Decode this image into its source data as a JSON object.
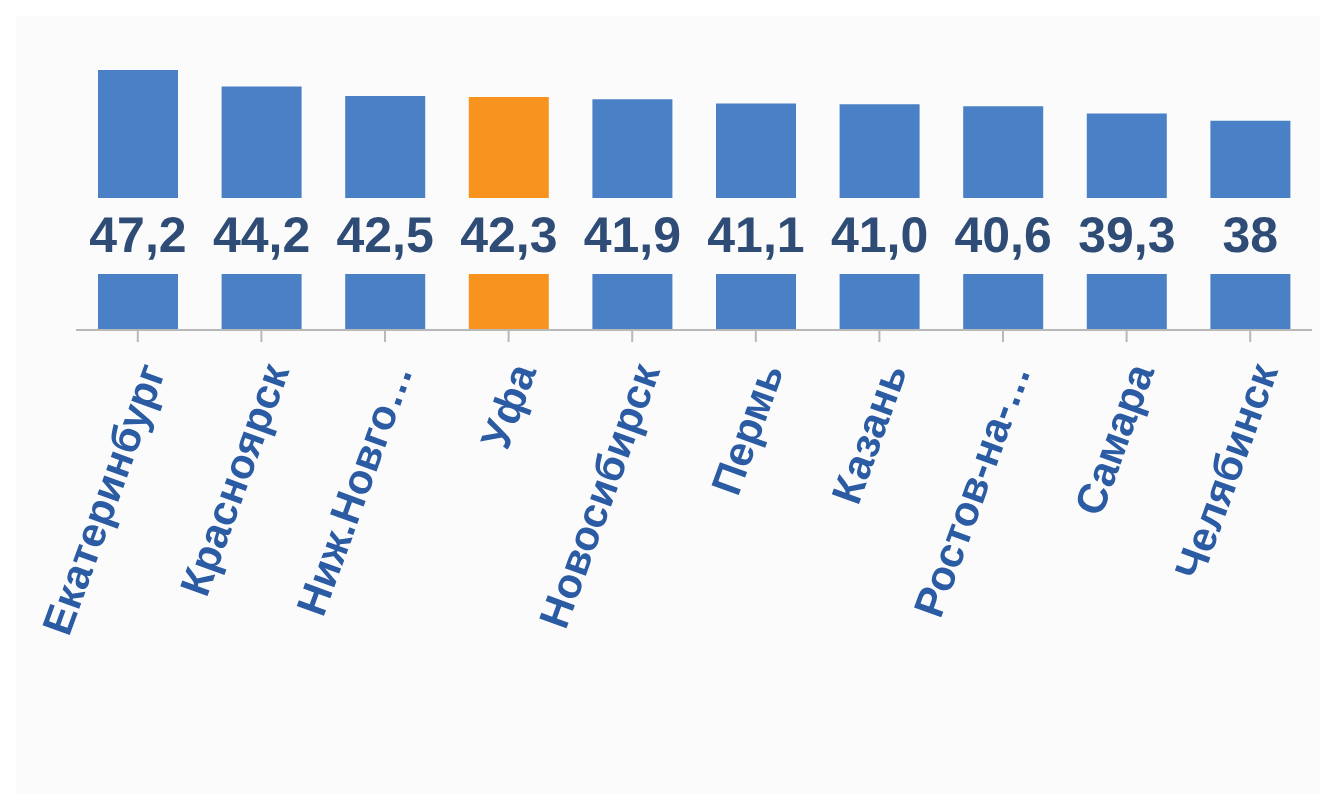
{
  "chart_data": {
    "type": "bar",
    "categories": [
      "Екатеринбург",
      "Красноярск",
      "Ниж.Новго…",
      "Уфа",
      "Новосибирск",
      "Пермь",
      "Казань",
      "Ростов-на-…",
      "Самара",
      "Челябинск"
    ],
    "values": [
      47.2,
      44.2,
      42.5,
      42.3,
      41.9,
      41.1,
      41.0,
      40.6,
      39.3,
      38
    ],
    "colors": [
      "#4a80c6",
      "#4a80c6",
      "#4a80c6",
      "#f7931e",
      "#4a80c6",
      "#4a80c6",
      "#4a80c6",
      "#4a80c6",
      "#4a80c6",
      "#4a80c6"
    ],
    "value_labels": [
      "47,2",
      "44,2",
      "42,5",
      "42,3",
      "41,9",
      "41,1",
      "41,0",
      "40,6",
      "39,3",
      "38"
    ],
    "grid": false,
    "legend": false
  }
}
